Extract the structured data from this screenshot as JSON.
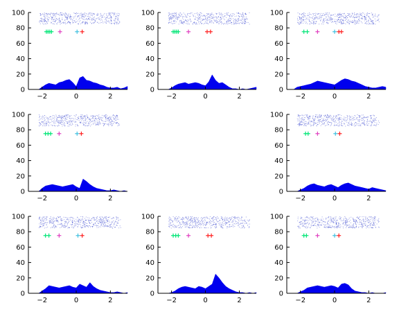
{
  "figure": {
    "type": "raster-psth-grid",
    "rows": 3,
    "cols": 3
  },
  "chart_data": [
    {
      "panel": "r1c1",
      "type": "area",
      "title": "",
      "xlabel": "",
      "ylabel": "",
      "xlim": [
        -2.8,
        3.0
      ],
      "ylim": [
        0,
        100
      ],
      "xticks": [
        -2,
        0,
        2
      ],
      "yticks": [
        0,
        20,
        40,
        60,
        80,
        100
      ],
      "xtick_labels": [
        "−2",
        "0",
        "2"
      ],
      "ytick_labels": [
        "0",
        "20",
        "40",
        "60",
        "80",
        "100"
      ],
      "histogram": {
        "x": [
          -2.4,
          -2.2,
          -2.0,
          -1.8,
          -1.6,
          -1.4,
          -1.2,
          -1.0,
          -0.8,
          -0.6,
          -0.4,
          -0.2,
          0.0,
          0.2,
          0.4,
          0.6,
          0.8,
          1.0,
          1.2,
          1.4,
          1.6,
          1.8,
          2.0,
          2.2,
          2.4,
          2.6,
          2.8,
          3.0
        ],
        "y": [
          0,
          0,
          3,
          6,
          8,
          7,
          6,
          9,
          10,
          12,
          13,
          9,
          4,
          15,
          17,
          12,
          11,
          9,
          8,
          6,
          5,
          3,
          2,
          2,
          3,
          1,
          2,
          4
        ]
      },
      "raster_y_range": [
        85,
        100
      ],
      "markers": [
        {
          "x": -1.75,
          "y": 75,
          "color": "#00e676"
        },
        {
          "x": -1.65,
          "y": 75,
          "color": "#00e676"
        },
        {
          "x": -1.55,
          "y": 75,
          "color": "#00e676"
        },
        {
          "x": -1.45,
          "y": 75,
          "color": "#00e676"
        },
        {
          "x": -0.95,
          "y": 75,
          "color": "#e040c0"
        },
        {
          "x": 0.05,
          "y": 75,
          "color": "#40c0e0"
        },
        {
          "x": 0.35,
          "y": 75,
          "color": "#ff2020"
        }
      ],
      "grid": false,
      "legend": "none"
    },
    {
      "panel": "r1c2",
      "type": "area",
      "title": "",
      "xlabel": "",
      "ylabel": "",
      "xlim": [
        -2.8,
        3.0
      ],
      "ylim": [
        0,
        100
      ],
      "xticks": [
        -2,
        0,
        2
      ],
      "yticks": [
        0,
        20,
        40,
        60,
        80,
        100
      ],
      "xtick_labels": [
        "−2",
        "0",
        "2"
      ],
      "ytick_labels": [
        "0",
        "20",
        "40",
        "60",
        "80",
        "100"
      ],
      "histogram": {
        "x": [
          -2.4,
          -2.2,
          -2.0,
          -1.8,
          -1.6,
          -1.4,
          -1.2,
          -1.0,
          -0.8,
          -0.6,
          -0.4,
          -0.2,
          0.0,
          0.2,
          0.4,
          0.6,
          0.8,
          1.0,
          1.2,
          1.4,
          1.6,
          1.8,
          2.0,
          2.2,
          2.4,
          2.6,
          2.8,
          3.0
        ],
        "y": [
          0,
          0,
          2,
          5,
          7,
          8,
          9,
          7,
          8,
          9,
          8,
          6,
          5,
          10,
          19,
          12,
          8,
          9,
          6,
          3,
          1,
          1,
          0,
          1,
          0,
          1,
          2,
          3
        ]
      },
      "raster_y_range": [
        85,
        100
      ],
      "markers": [
        {
          "x": -1.9,
          "y": 75,
          "color": "#00e676"
        },
        {
          "x": -1.8,
          "y": 75,
          "color": "#00e676"
        },
        {
          "x": -1.7,
          "y": 75,
          "color": "#00e676"
        },
        {
          "x": -1.6,
          "y": 75,
          "color": "#00e676"
        },
        {
          "x": -1.0,
          "y": 75,
          "color": "#e040c0"
        },
        {
          "x": 0.1,
          "y": 75,
          "color": "#ff2020"
        },
        {
          "x": 0.3,
          "y": 75,
          "color": "#ff2020"
        }
      ],
      "grid": false,
      "legend": "none"
    },
    {
      "panel": "r1c3",
      "type": "area",
      "title": "",
      "xlabel": "",
      "ylabel": "",
      "xlim": [
        -2.8,
        3.0
      ],
      "ylim": [
        0,
        100
      ],
      "xticks": [
        -2,
        0,
        2
      ],
      "yticks": [
        0,
        20,
        40,
        60,
        80,
        100
      ],
      "xtick_labels": [
        "−2",
        "0",
        "2"
      ],
      "ytick_labels": [
        "0",
        "20",
        "40",
        "60",
        "80",
        "100"
      ],
      "histogram": {
        "x": [
          -2.4,
          -2.2,
          -2.0,
          -1.8,
          -1.6,
          -1.4,
          -1.2,
          -1.0,
          -0.8,
          -0.6,
          -0.4,
          -0.2,
          0.0,
          0.2,
          0.4,
          0.6,
          0.8,
          1.0,
          1.2,
          1.4,
          1.6,
          1.8,
          2.0,
          2.2,
          2.4,
          2.6,
          2.8,
          3.0
        ],
        "y": [
          0,
          3,
          4,
          5,
          6,
          7,
          9,
          11,
          10,
          9,
          8,
          7,
          6,
          9,
          12,
          14,
          13,
          11,
          10,
          8,
          6,
          4,
          3,
          2,
          2,
          3,
          4,
          3
        ]
      },
      "raster_y_range": [
        85,
        100
      ],
      "markers": [
        {
          "x": -1.8,
          "y": 75,
          "color": "#00e676"
        },
        {
          "x": -1.6,
          "y": 75,
          "color": "#00e676"
        },
        {
          "x": -1.0,
          "y": 75,
          "color": "#e040c0"
        },
        {
          "x": 0.0,
          "y": 75,
          "color": "#40c0e0"
        },
        {
          "x": 0.25,
          "y": 75,
          "color": "#ff2020"
        },
        {
          "x": 0.4,
          "y": 75,
          "color": "#ff2020"
        }
      ],
      "grid": false,
      "legend": "none"
    },
    {
      "panel": "r2c1",
      "type": "area",
      "title": "",
      "xlabel": "",
      "ylabel": "",
      "xlim": [
        -2.8,
        3.0
      ],
      "ylim": [
        0,
        100
      ],
      "xticks": [
        -2,
        0,
        2
      ],
      "yticks": [
        0,
        20,
        40,
        60,
        80,
        100
      ],
      "xtick_labels": [
        "−2",
        "0",
        "2"
      ],
      "ytick_labels": [
        "0",
        "20",
        "40",
        "60",
        "80",
        "100"
      ],
      "histogram": {
        "x": [
          -2.4,
          -2.2,
          -2.0,
          -1.8,
          -1.6,
          -1.4,
          -1.2,
          -1.0,
          -0.8,
          -0.6,
          -0.4,
          -0.2,
          0.0,
          0.2,
          0.4,
          0.6,
          0.8,
          1.0,
          1.2,
          1.4,
          1.6,
          1.8,
          2.0,
          2.2,
          2.4,
          2.6,
          2.8,
          3.0
        ],
        "y": [
          0,
          0,
          4,
          7,
          8,
          9,
          8,
          7,
          6,
          7,
          8,
          9,
          6,
          4,
          16,
          13,
          9,
          6,
          4,
          3,
          2,
          1,
          1,
          2,
          1,
          0,
          1,
          0
        ]
      },
      "raster_y_range": [
        85,
        100
      ],
      "markers": [
        {
          "x": -1.8,
          "y": 75,
          "color": "#00e676"
        },
        {
          "x": -1.65,
          "y": 75,
          "color": "#00e676"
        },
        {
          "x": -1.5,
          "y": 75,
          "color": "#00e676"
        },
        {
          "x": -1.0,
          "y": 75,
          "color": "#e040c0"
        },
        {
          "x": 0.05,
          "y": 75,
          "color": "#40c0e0"
        },
        {
          "x": 0.3,
          "y": 75,
          "color": "#ff2020"
        }
      ],
      "grid": false,
      "legend": "none"
    },
    {
      "panel": "r2c3",
      "type": "area",
      "title": "",
      "xlabel": "",
      "ylabel": "",
      "xlim": [
        -2.8,
        3.0
      ],
      "ylim": [
        0,
        100
      ],
      "xticks": [
        -2,
        0,
        2
      ],
      "yticks": [
        0,
        20,
        40,
        60,
        80,
        100
      ],
      "xtick_labels": [
        "−2",
        "0",
        "2"
      ],
      "ytick_labels": [
        "0",
        "20",
        "40",
        "60",
        "80",
        "100"
      ],
      "histogram": {
        "x": [
          -2.4,
          -2.2,
          -2.0,
          -1.8,
          -1.6,
          -1.4,
          -1.2,
          -1.0,
          -0.8,
          -0.6,
          -0.4,
          -0.2,
          0.0,
          0.2,
          0.4,
          0.6,
          0.8,
          1.0,
          1.2,
          1.4,
          1.6,
          1.8,
          2.0,
          2.2,
          2.4,
          2.6,
          2.8,
          3.0
        ],
        "y": [
          0,
          0,
          2,
          4,
          7,
          9,
          10,
          8,
          7,
          6,
          8,
          9,
          7,
          5,
          8,
          10,
          11,
          9,
          7,
          6,
          5,
          4,
          3,
          5,
          4,
          3,
          2,
          1
        ]
      },
      "raster_y_range": [
        85,
        100
      ],
      "markers": [
        {
          "x": -1.7,
          "y": 75,
          "color": "#00e676"
        },
        {
          "x": -1.55,
          "y": 75,
          "color": "#00e676"
        },
        {
          "x": -1.0,
          "y": 75,
          "color": "#e040c0"
        },
        {
          "x": 0.05,
          "y": 75,
          "color": "#40c0e0"
        },
        {
          "x": 0.3,
          "y": 75,
          "color": "#ff2020"
        }
      ],
      "grid": false,
      "legend": "none"
    },
    {
      "panel": "r3c1",
      "type": "area",
      "title": "",
      "xlabel": "",
      "ylabel": "",
      "xlim": [
        -2.8,
        3.0
      ],
      "ylim": [
        0,
        100
      ],
      "xticks": [
        -2,
        0,
        2
      ],
      "yticks": [
        0,
        20,
        40,
        60,
        80,
        100
      ],
      "xtick_labels": [
        "−2",
        "0",
        "2"
      ],
      "ytick_labels": [
        "0",
        "20",
        "40",
        "60",
        "80",
        "100"
      ],
      "histogram": {
        "x": [
          -2.4,
          -2.2,
          -2.0,
          -1.8,
          -1.6,
          -1.4,
          -1.2,
          -1.0,
          -0.8,
          -0.6,
          -0.4,
          -0.2,
          0.0,
          0.2,
          0.4,
          0.6,
          0.8,
          1.0,
          1.2,
          1.4,
          1.6,
          1.8,
          2.0,
          2.2,
          2.4,
          2.6,
          2.8,
          3.0
        ],
        "y": [
          0,
          0,
          3,
          6,
          10,
          9,
          8,
          7,
          8,
          9,
          10,
          8,
          7,
          12,
          10,
          8,
          14,
          9,
          6,
          4,
          3,
          2,
          1,
          1,
          2,
          1,
          0,
          1
        ]
      },
      "raster_y_range": [
        85,
        100
      ],
      "markers": [
        {
          "x": -1.8,
          "y": 75,
          "color": "#00e676"
        },
        {
          "x": -1.6,
          "y": 75,
          "color": "#00e676"
        },
        {
          "x": -1.0,
          "y": 75,
          "color": "#e040c0"
        },
        {
          "x": 0.1,
          "y": 75,
          "color": "#40c0e0"
        },
        {
          "x": 0.35,
          "y": 75,
          "color": "#ff2020"
        }
      ],
      "grid": false,
      "legend": "none"
    },
    {
      "panel": "r3c2",
      "type": "area",
      "title": "",
      "xlabel": "",
      "ylabel": "",
      "xlim": [
        -2.8,
        3.0
      ],
      "ylim": [
        0,
        100
      ],
      "xticks": [
        -2,
        0,
        2
      ],
      "yticks": [
        0,
        20,
        40,
        60,
        80,
        100
      ],
      "xtick_labels": [
        "−2",
        "0",
        "2"
      ],
      "ytick_labels": [
        "0",
        "20",
        "40",
        "60",
        "80",
        "100"
      ],
      "histogram": {
        "x": [
          -2.4,
          -2.2,
          -2.0,
          -1.8,
          -1.6,
          -1.4,
          -1.2,
          -1.0,
          -0.8,
          -0.6,
          -0.4,
          -0.2,
          0.0,
          0.2,
          0.4,
          0.6,
          0.8,
          1.0,
          1.2,
          1.4,
          1.6,
          1.8,
          2.0,
          2.2,
          2.4,
          2.6,
          2.8,
          3.0
        ],
        "y": [
          0,
          0,
          1,
          3,
          6,
          8,
          9,
          8,
          7,
          6,
          9,
          8,
          6,
          9,
          12,
          25,
          20,
          14,
          9,
          6,
          4,
          2,
          1,
          1,
          0,
          1,
          0,
          1
        ]
      },
      "raster_y_range": [
        85,
        100
      ],
      "markers": [
        {
          "x": -1.9,
          "y": 75,
          "color": "#00e676"
        },
        {
          "x": -1.75,
          "y": 75,
          "color": "#00e676"
        },
        {
          "x": -1.6,
          "y": 75,
          "color": "#00e676"
        },
        {
          "x": -1.0,
          "y": 75,
          "color": "#e040c0"
        },
        {
          "x": 0.15,
          "y": 75,
          "color": "#ff2020"
        },
        {
          "x": 0.35,
          "y": 75,
          "color": "#ff2020"
        }
      ],
      "grid": false,
      "legend": "none"
    },
    {
      "panel": "r3c3",
      "type": "area",
      "title": "",
      "xlabel": "",
      "ylabel": "",
      "xlim": [
        -2.8,
        3.0
      ],
      "ylim": [
        0,
        100
      ],
      "xticks": [
        -2,
        0,
        2
      ],
      "yticks": [
        0,
        20,
        40,
        60,
        80,
        100
      ],
      "xtick_labels": [
        "−2",
        "0",
        "2"
      ],
      "ytick_labels": [
        "0",
        "20",
        "40",
        "60",
        "80",
        "100"
      ],
      "histogram": {
        "x": [
          -2.4,
          -2.2,
          -2.0,
          -1.8,
          -1.6,
          -1.4,
          -1.2,
          -1.0,
          -0.8,
          -0.6,
          -0.4,
          -0.2,
          0.0,
          0.2,
          0.4,
          0.6,
          0.8,
          1.0,
          1.2,
          1.4,
          1.6,
          1.8,
          2.0,
          2.2,
          2.4,
          2.6,
          2.8,
          3.0
        ],
        "y": [
          0,
          0,
          2,
          4,
          7,
          8,
          9,
          10,
          9,
          8,
          9,
          10,
          9,
          7,
          12,
          13,
          11,
          6,
          3,
          2,
          1,
          1,
          0,
          1,
          0,
          0,
          0,
          1
        ]
      },
      "raster_y_range": [
        85,
        100
      ],
      "markers": [
        {
          "x": -1.8,
          "y": 75,
          "color": "#00e676"
        },
        {
          "x": -1.65,
          "y": 75,
          "color": "#00e676"
        },
        {
          "x": -1.0,
          "y": 75,
          "color": "#e040c0"
        },
        {
          "x": 0.0,
          "y": 75,
          "color": "#40c0e0"
        },
        {
          "x": 0.25,
          "y": 75,
          "color": "#ff2020"
        }
      ],
      "grid": false,
      "legend": "none"
    }
  ],
  "colors": {
    "histogram_fill": "#0000ee",
    "raster_dots": "#2030c8",
    "axis": "#000000"
  }
}
